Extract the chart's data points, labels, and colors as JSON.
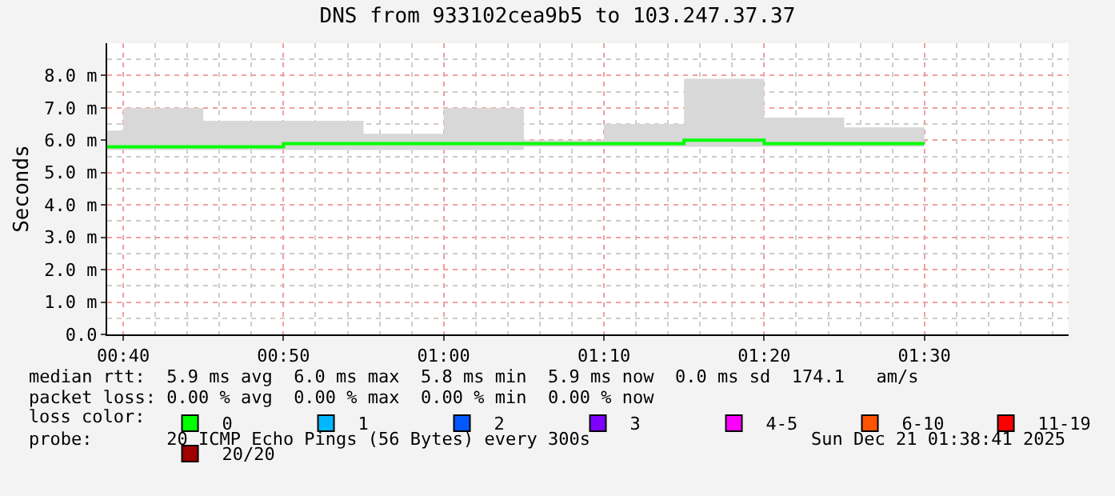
{
  "chart_data": {
    "type": "step",
    "title": "DNS from 933102cea9b5 to 103.247.37.37",
    "ylabel": "Seconds",
    "x": [
      "2025-12-21T00:40",
      "2025-12-21T00:45",
      "2025-12-21T00:50",
      "2025-12-21T00:55",
      "2025-12-21T01:00",
      "2025-12-21T01:05",
      "2025-12-21T01:10",
      "2025-12-21T01:15",
      "2025-12-21T01:20",
      "2025-12-21T01:25",
      "2025-12-21T01:30"
    ],
    "series": [
      {
        "color": "#00ff00",
        "values": [
          5.8,
          5.8,
          5.8,
          5.9,
          5.9,
          5.9,
          5.9,
          5.9,
          6.0,
          5.9,
          5.9
        ],
        "lower": [
          5.7,
          5.7,
          5.7,
          5.7,
          5.7,
          5.7,
          5.8,
          5.8,
          5.8,
          5.8,
          5.8
        ],
        "upper": [
          6.3,
          7.0,
          6.6,
          6.6,
          6.2,
          7.0,
          6.0,
          6.5,
          7.9,
          6.7,
          6.4
        ]
      },
      {
        "type": "scatter",
        "name": "0",
        "color": "#00ff00",
        "values": [
          null,
          null,
          null,
          null,
          null,
          null,
          null,
          null,
          null,
          null,
          null
        ]
      },
      {
        "type": "scatter",
        "name": "1",
        "color": "#00b8ff",
        "values": [
          null,
          null,
          null,
          null,
          null,
          null,
          null,
          null,
          null,
          null,
          null
        ]
      },
      {
        "type": "scatter",
        "name": "2",
        "color": "#0059ff",
        "values": [
          null,
          null,
          null,
          null,
          null,
          null,
          null,
          null,
          null,
          null,
          null
        ]
      },
      {
        "type": "scatter",
        "name": "3",
        "color": "#7e00ff",
        "values": [
          null,
          null,
          null,
          null,
          null,
          null,
          null,
          null,
          null,
          null,
          null
        ]
      },
      {
        "type": "scatter",
        "name": "4-5",
        "color": "#ff00ff",
        "values": [
          null,
          null,
          null,
          null,
          null,
          null,
          null,
          null,
          null,
          null,
          null
        ]
      },
      {
        "type": "scatter",
        "name": "6-10",
        "color": "#ff5500",
        "values": [
          null,
          null,
          null,
          null,
          null,
          null,
          null,
          null,
          null,
          null,
          null
        ]
      },
      {
        "type": "scatter",
        "name": "11-19",
        "color": "#ff0000",
        "values": [
          null,
          null,
          null,
          null,
          null,
          null,
          null,
          null,
          null,
          null,
          null
        ]
      },
      {
        "type": "scatter",
        "name": "20/20",
        "color": "#a10000",
        "values": [
          null,
          null,
          null,
          null,
          null,
          null,
          null,
          null,
          null,
          null,
          null
        ]
      }
    ],
    "legend_title": "loss color:",
    "legend": "bottom",
    "grid": true,
    "xlim": [
      "2025-12-21T00:39",
      "2025-12-21T01:39"
    ],
    "xticks": [
      {
        "value": "2025-12-21T00:40",
        "label": "00:40"
      },
      {
        "value": "2025-12-21T00:50",
        "label": "00:50"
      },
      {
        "value": "2025-12-21T01:00",
        "label": "01:00"
      },
      {
        "value": "2025-12-21T01:10",
        "label": "01:10"
      },
      {
        "value": "2025-12-21T01:20",
        "label": "01:20"
      },
      {
        "value": "2025-12-21T01:30",
        "label": "01:30"
      }
    ],
    "ylim": [
      0,
      9
    ],
    "yticks": [
      {
        "value": 0,
        "label": "0.0"
      },
      {
        "value": 1,
        "label": "1.0 m"
      },
      {
        "value": 2,
        "label": "2.0 m"
      },
      {
        "value": 3,
        "label": "3.0 m"
      },
      {
        "value": 4,
        "label": "4.0 m"
      },
      {
        "value": 5,
        "label": "5.0 m"
      },
      {
        "value": 6,
        "label": "6.0 m"
      },
      {
        "value": 7,
        "label": "7.0 m"
      },
      {
        "value": 8,
        "label": "8.0 m"
      }
    ],
    "annotations": [
      "median rtt:  5.9 ms avg  6.0 ms max  5.8 ms min  5.9 ms now  0.0 ms sd  174.1   am/s",
      "packet loss: 0.00 % avg  0.00 % max  0.00 % min  0.00 % now",
      "probe:       20 ICMP Echo Pings (56 Bytes) every 300s",
      "Sun Dec 21 01:38:41 2025"
    ]
  }
}
